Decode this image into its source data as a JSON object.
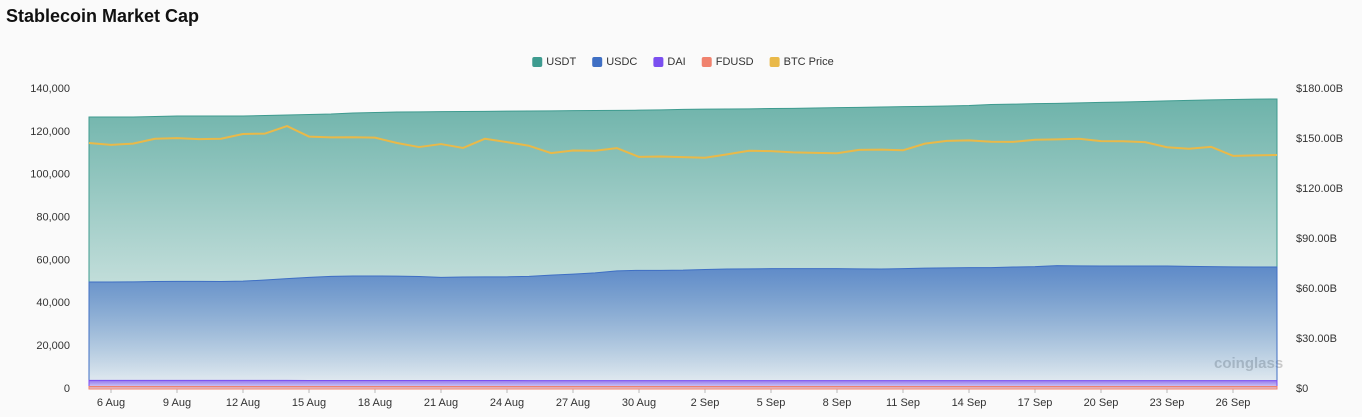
{
  "chart_data": {
    "type": "area",
    "title": "Stablecoin Market Cap",
    "watermark": "coinglass",
    "categories": [
      null,
      "6 Aug",
      null,
      null,
      "9 Aug",
      null,
      null,
      "12 Aug",
      null,
      null,
      "15 Aug",
      null,
      null,
      "18 Aug",
      null,
      null,
      "21 Aug",
      null,
      null,
      "24 Aug",
      null,
      null,
      "27 Aug",
      null,
      null,
      "30 Aug",
      null,
      null,
      "2 Sep",
      null,
      null,
      "5 Sep",
      null,
      null,
      "8 Sep",
      null,
      null,
      "11 Sep",
      null,
      null,
      "14 Sep",
      null,
      null,
      "17 Sep",
      null,
      null,
      "20 Sep",
      null,
      null,
      "23 Sep",
      null,
      null,
      "26 Sep",
      null,
      null
    ],
    "series": [
      {
        "name": "USDT",
        "color": "#3e9b8f",
        "axis": "y2",
        "values": [
          163.2,
          163.2,
          163.2,
          163.5,
          163.8,
          163.8,
          163.8,
          163.8,
          164.1,
          164.4,
          164.7,
          165.0,
          165.6,
          165.9,
          166.2,
          166.3,
          166.4,
          166.5,
          166.6,
          166.7,
          166.8,
          166.9,
          167.0,
          167.1,
          167.2,
          167.3,
          167.5,
          167.8,
          167.9,
          168.0,
          168.1,
          168.3,
          168.4,
          168.6,
          168.8,
          169.0,
          169.2,
          169.4,
          169.6,
          169.8,
          170.1,
          170.7,
          170.9,
          171.2,
          171.4,
          171.7,
          172.0,
          172.2,
          172.5,
          172.9,
          173.2,
          173.5,
          173.7,
          173.9,
          174.0
        ]
      },
      {
        "name": "USDC",
        "color": "#3f6fc4",
        "axis": "y2",
        "values": [
          64.2,
          64.2,
          64.3,
          64.5,
          64.6,
          64.6,
          64.5,
          64.7,
          65.4,
          66.2,
          67.0,
          67.6,
          67.8,
          67.8,
          67.7,
          67.5,
          67.0,
          67.2,
          67.3,
          67.3,
          67.6,
          68.3,
          68.9,
          69.7,
          70.9,
          71.2,
          71.2,
          71.3,
          71.7,
          72.0,
          72.1,
          72.2,
          72.2,
          72.2,
          72.2,
          72.1,
          72.0,
          72.2,
          72.5,
          72.7,
          72.8,
          72.8,
          73.2,
          73.4,
          74.0,
          73.9,
          73.8,
          73.8,
          73.8,
          73.8,
          73.6,
          73.4,
          73.3,
          73.2,
          73.2
        ]
      },
      {
        "name": "DAI",
        "color": "#7b4ff0",
        "axis": "y2",
        "values": [
          5.2,
          5.2,
          5.2,
          5.2,
          5.2,
          5.2,
          5.2,
          5.2,
          5.2,
          5.2,
          5.1,
          5.1,
          5.1,
          5.1,
          5.1,
          5.1,
          5.1,
          5.1,
          5.1,
          5.1,
          5.0,
          5.0,
          5.0,
          5.0,
          5.0,
          5.0,
          5.0,
          5.0,
          5.0,
          5.0,
          5.0,
          5.0,
          5.0,
          5.0,
          5.0,
          5.0,
          5.0,
          5.0,
          5.0,
          5.0,
          5.0,
          5.0,
          5.0,
          5.0,
          5.0,
          5.0,
          5.0,
          5.0,
          5.0,
          5.0,
          5.0,
          5.0,
          5.0,
          5.0,
          5.0
        ]
      },
      {
        "name": "FDUSD",
        "color": "#f0826e",
        "axis": "y2",
        "values": [
          1.5,
          1.5,
          1.5,
          1.5,
          1.5,
          1.5,
          1.5,
          1.5,
          1.5,
          1.5,
          1.5,
          1.5,
          1.5,
          1.5,
          1.5,
          1.5,
          1.5,
          1.5,
          1.5,
          1.5,
          1.5,
          1.5,
          1.5,
          1.5,
          1.5,
          1.5,
          1.5,
          1.5,
          1.5,
          1.5,
          1.5,
          1.5,
          1.5,
          1.5,
          1.5,
          1.5,
          1.5,
          1.5,
          1.5,
          1.5,
          1.5,
          1.5,
          1.5,
          1.5,
          1.5,
          1.5,
          1.5,
          1.5,
          1.5,
          1.5,
          1.5,
          1.5,
          1.5,
          1.5,
          1.5
        ]
      },
      {
        "name": "BTC Price",
        "color": "#e9b949",
        "type": "line",
        "values": [
          114800,
          113900,
          114500,
          116800,
          117100,
          116600,
          116800,
          119000,
          119200,
          122700,
          117800,
          117400,
          117500,
          117300,
          114800,
          112900,
          114300,
          112500,
          116800,
          115200,
          113500,
          110100,
          111300,
          111200,
          112400,
          108300,
          108500,
          108200,
          107900,
          109500,
          111200,
          111000,
          110400,
          110200,
          110000,
          111600,
          111700,
          111400,
          114500,
          115800,
          116000,
          115400,
          115300,
          116300,
          116500,
          116800,
          115700,
          115600,
          115200,
          112800,
          112100,
          113000,
          108800,
          109000,
          109200
        ]
      }
    ],
    "ylim": [
      0,
      140000
    ],
    "yticks": [
      0,
      {
        "value": 20000,
        "label": "20,000"
      },
      {
        "value": 40000,
        "label": "40,000"
      },
      {
        "value": 60000,
        "label": "60,000"
      },
      {
        "value": 80000,
        "label": "80,000"
      },
      {
        "value": 100000,
        "label": "100,000"
      },
      {
        "value": 120000,
        "label": "120,000"
      },
      {
        "value": 140000,
        "label": "140,000"
      }
    ],
    "y2lim": [
      0,
      180
    ],
    "y2ticks": [
      {
        "value": 0,
        "label": "$0"
      },
      {
        "value": 30,
        "label": "$30.00B"
      },
      {
        "value": 60,
        "label": "$60.00B"
      },
      {
        "value": 90,
        "label": "$90.00B"
      },
      {
        "value": 120,
        "label": "$120.00B"
      },
      {
        "value": 150,
        "label": "$150.00B"
      },
      {
        "value": 180,
        "label": "$180.00B"
      }
    ],
    "grid": false,
    "legend": "top"
  }
}
